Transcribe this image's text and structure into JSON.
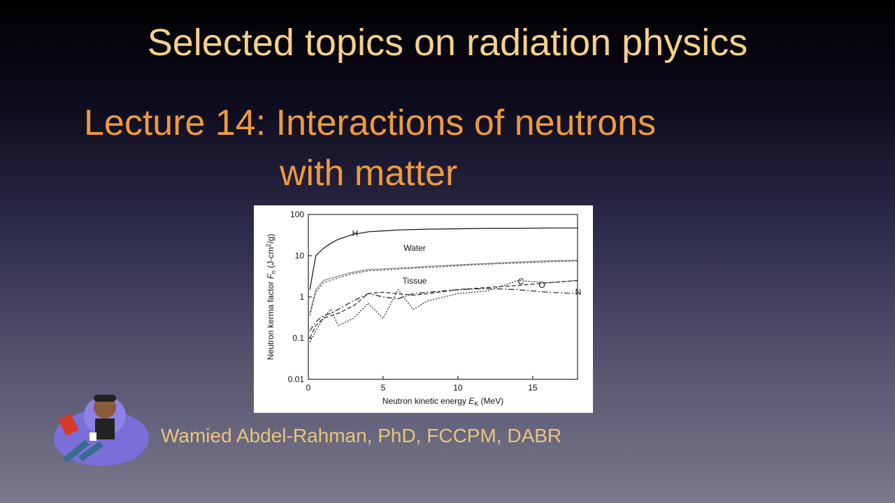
{
  "slide": {
    "title": "Selected topics on radiation physics",
    "subtitle": [
      "Lecture 14: Interactions of neutrons",
      "with matter"
    ],
    "author": "Wamied Abdel-Rahman, PhD, FCCPM, DABR"
  },
  "chart_data": {
    "type": "line",
    "xlabel": [
      "Neutron kinetic energy ",
      "E",
      "K",
      " (MeV)"
    ],
    "ylabel": [
      "Neutron kerma factor ",
      "F",
      "n",
      " (J-cm",
      "2",
      "/g)"
    ],
    "log_y": true,
    "xlim": [
      0,
      18
    ],
    "xticks": [
      0,
      5,
      10,
      15
    ],
    "ylim": [
      0.01,
      100
    ],
    "yticks": [
      0.01,
      0.1,
      1,
      10,
      100
    ],
    "x": [
      0.1,
      0.5,
      1,
      1.5,
      2,
      3,
      4,
      5,
      6,
      7,
      8,
      10,
      12,
      14,
      16,
      18
    ],
    "series": [
      {
        "name": "H",
        "color": "#111111",
        "dash": "none",
        "values": [
          1.5,
          10,
          15,
          20,
          25,
          33,
          38,
          40,
          42,
          43,
          44,
          45,
          46,
          46,
          47,
          47
        ]
      },
      {
        "name": "Water",
        "color": "#888888",
        "dash": "none",
        "values": [
          0.4,
          1.5,
          2.5,
          2.8,
          3.2,
          4,
          4.6,
          4.8,
          5,
          5.2,
          5.5,
          6,
          6.5,
          7,
          7.5,
          7.8
        ]
      },
      {
        "name": "Tissue",
        "color": "#555555",
        "dash": "3,2",
        "values": [
          0.35,
          1.3,
          2.2,
          2.5,
          2.9,
          3.7,
          4.3,
          4.5,
          4.7,
          5,
          5.2,
          5.7,
          6.2,
          6.6,
          7.1,
          7.4
        ]
      },
      {
        "name": "C",
        "color": "#222222",
        "dash": "6,3",
        "values": [
          0.1,
          0.2,
          0.3,
          0.35,
          0.4,
          0.6,
          1.2,
          1.3,
          1.2,
          1.1,
          1.2,
          1.5,
          1.7,
          1.9,
          2.2,
          2.5
        ]
      },
      {
        "name": "O",
        "color": "#222222",
        "dash": "2,2",
        "values": [
          0.08,
          0.15,
          0.3,
          0.5,
          0.2,
          0.3,
          0.7,
          0.3,
          1.5,
          0.5,
          0.8,
          1.2,
          1.4,
          2.5,
          2.2,
          2.5
        ]
      },
      {
        "name": "N",
        "color": "#222222",
        "dash": "8,3,2,3",
        "values": [
          0.15,
          0.25,
          0.35,
          0.4,
          0.5,
          0.8,
          1.2,
          1,
          0.9,
          1.2,
          1.3,
          1.5,
          1.6,
          1.5,
          1.3,
          1.2
        ]
      }
    ]
  }
}
